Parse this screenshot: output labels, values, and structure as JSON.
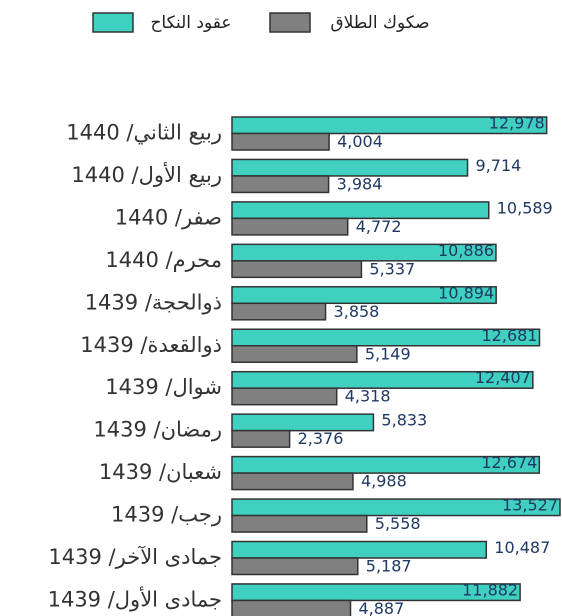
{
  "chart_data": {
    "type": "bar",
    "orientation": "horizontal",
    "categories": [
      "ربيع الثاني/ 1440",
      "ربيع الأول/ 1440",
      "صفر/ 1440",
      "محرم/ 1440",
      "ذوالحجة/ 1439",
      "ذوالقعدة/ 1439",
      "شوال/ 1439",
      "رمضان/ 1439",
      "شعبان/ 1439",
      "رجب/ 1439",
      "جمادى الآخر/ 1439",
      "جمادى الأول/ 1439"
    ],
    "series": [
      {
        "name": "عقود النكاح",
        "color": "#3fd0c0",
        "values": [
          12978,
          9714,
          10589,
          10886,
          10894,
          12681,
          12407,
          5833,
          12674,
          13527,
          10487,
          11882
        ],
        "value_labels": [
          "12,978",
          "9,714",
          "10,589",
          "10,886",
          "10,894",
          "12,681",
          "12,407",
          "5,833",
          "12,674",
          "13,527",
          "10,487",
          "11,882"
        ]
      },
      {
        "name": "صكوك الطلاق",
        "color": "#808080",
        "values": [
          4004,
          3984,
          4772,
          5337,
          3858,
          5149,
          4318,
          2376,
          4988,
          5558,
          5187,
          4887
        ],
        "value_labels": [
          "4,004",
          "3,984",
          "4,772",
          "5,337",
          "3,858",
          "5,149",
          "4,318",
          "2,376",
          "4,988",
          "5,558",
          "5,187",
          "4,887"
        ]
      }
    ]
  }
}
